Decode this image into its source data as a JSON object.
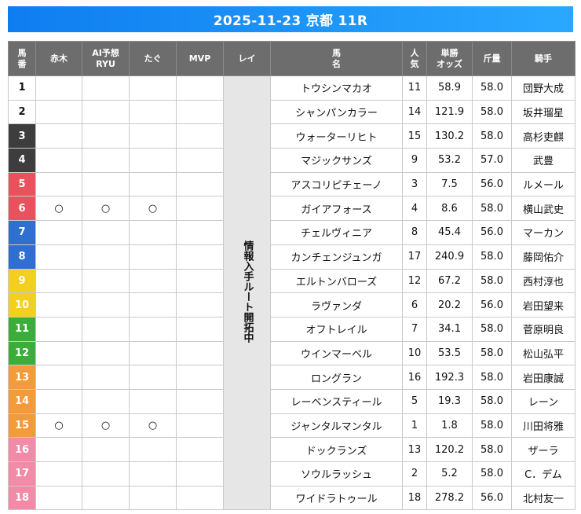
{
  "title": "2025-11-23 京都 11R",
  "headers": {
    "umaban": "馬\n番",
    "akagi": "赤木",
    "ai": "AI予想\nRYU",
    "tagu": "たぐ",
    "mvp": "MVP",
    "rei": "レイ",
    "name": "馬\n名",
    "ninki": "人\n気",
    "odds": "単勝\nオッズ",
    "weight": "斤量",
    "jockey": "騎手"
  },
  "rei_text": "情報入手ルート開拓中",
  "waku_colors": {
    "1": "#ffffff",
    "2": "#ffffff",
    "3": "#3d3d3d",
    "4": "#e9515c",
    "5": "#2f6fd0",
    "6": "#f2cf20",
    "7": "#3bad3b",
    "8": "#f39a3c",
    "9": "#f28aa8"
  },
  "rows": [
    {
      "no": "1",
      "waku": 1,
      "akagi": "",
      "ai": "",
      "tagu": "",
      "mvp": "",
      "name": "トウシンマカオ",
      "ninki": "11",
      "odds": "58.9",
      "weight": "58.0",
      "jockey": "団野大成"
    },
    {
      "no": "2",
      "waku": 2,
      "akagi": "",
      "ai": "",
      "tagu": "",
      "mvp": "",
      "name": "シャンパンカラー",
      "ninki": "14",
      "odds": "121.9",
      "weight": "58.0",
      "jockey": "坂井瑠星"
    },
    {
      "no": "3",
      "waku": 3,
      "akagi": "",
      "ai": "",
      "tagu": "",
      "mvp": "",
      "name": "ウォーターリヒト",
      "ninki": "15",
      "odds": "130.2",
      "weight": "58.0",
      "jockey": "高杉吏麒"
    },
    {
      "no": "4",
      "waku": 3,
      "akagi": "",
      "ai": "",
      "tagu": "",
      "mvp": "",
      "name": "マジックサンズ",
      "ninki": "9",
      "odds": "53.2",
      "weight": "57.0",
      "jockey": "武豊"
    },
    {
      "no": "5",
      "waku": 4,
      "akagi": "",
      "ai": "",
      "tagu": "",
      "mvp": "",
      "name": "アスコリピチェーノ",
      "ninki": "3",
      "odds": "7.5",
      "weight": "56.0",
      "jockey": "ルメール"
    },
    {
      "no": "6",
      "waku": 4,
      "akagi": "○",
      "ai": "○",
      "tagu": "○",
      "mvp": "",
      "name": "ガイアフォース",
      "ninki": "4",
      "odds": "8.6",
      "weight": "58.0",
      "jockey": "横山武史"
    },
    {
      "no": "7",
      "waku": 5,
      "akagi": "",
      "ai": "",
      "tagu": "",
      "mvp": "",
      "name": "チェルヴィニア",
      "ninki": "8",
      "odds": "45.4",
      "weight": "56.0",
      "jockey": "マーカン"
    },
    {
      "no": "8",
      "waku": 5,
      "akagi": "",
      "ai": "",
      "tagu": "",
      "mvp": "",
      "name": "カンチェンジュンガ",
      "ninki": "17",
      "odds": "240.9",
      "weight": "58.0",
      "jockey": "藤岡佑介"
    },
    {
      "no": "9",
      "waku": 6,
      "akagi": "",
      "ai": "",
      "tagu": "",
      "mvp": "",
      "name": "エルトンバローズ",
      "ninki": "12",
      "odds": "67.2",
      "weight": "58.0",
      "jockey": "西村淳也"
    },
    {
      "no": "10",
      "waku": 6,
      "akagi": "",
      "ai": "",
      "tagu": "",
      "mvp": "",
      "name": "ラヴァンダ",
      "ninki": "6",
      "odds": "20.2",
      "weight": "56.0",
      "jockey": "岩田望来"
    },
    {
      "no": "11",
      "waku": 7,
      "akagi": "",
      "ai": "",
      "tagu": "",
      "mvp": "",
      "name": "オフトレイル",
      "ninki": "7",
      "odds": "34.1",
      "weight": "58.0",
      "jockey": "菅原明良"
    },
    {
      "no": "12",
      "waku": 7,
      "akagi": "",
      "ai": "",
      "tagu": "",
      "mvp": "",
      "name": "ウインマーベル",
      "ninki": "10",
      "odds": "53.5",
      "weight": "58.0",
      "jockey": "松山弘平"
    },
    {
      "no": "13",
      "waku": 8,
      "akagi": "",
      "ai": "",
      "tagu": "",
      "mvp": "",
      "name": "ロングラン",
      "ninki": "16",
      "odds": "192.3",
      "weight": "58.0",
      "jockey": "岩田康誠"
    },
    {
      "no": "14",
      "waku": 8,
      "akagi": "",
      "ai": "",
      "tagu": "",
      "mvp": "",
      "name": "レーベンスティール",
      "ninki": "5",
      "odds": "19.3",
      "weight": "58.0",
      "jockey": "レーン"
    },
    {
      "no": "15",
      "waku": 8,
      "akagi": "○",
      "ai": "○",
      "tagu": "○",
      "mvp": "",
      "name": "ジャンタルマンタル",
      "ninki": "1",
      "odds": "1.8",
      "weight": "58.0",
      "jockey": "川田将雅"
    },
    {
      "no": "16",
      "waku": 9,
      "akagi": "",
      "ai": "",
      "tagu": "",
      "mvp": "",
      "name": "ドックランズ",
      "ninki": "13",
      "odds": "120.2",
      "weight": "58.0",
      "jockey": "ザーラ"
    },
    {
      "no": "17",
      "waku": 9,
      "akagi": "",
      "ai": "",
      "tagu": "",
      "mvp": "",
      "name": "ソウルラッシュ",
      "ninki": "2",
      "odds": "5.2",
      "weight": "58.0",
      "jockey": "C．デム"
    },
    {
      "no": "18",
      "waku": 9,
      "akagi": "",
      "ai": "",
      "tagu": "",
      "mvp": "",
      "name": "ワイドラトゥール",
      "ninki": "18",
      "odds": "278.2",
      "weight": "56.0",
      "jockey": "北村友一"
    }
  ]
}
